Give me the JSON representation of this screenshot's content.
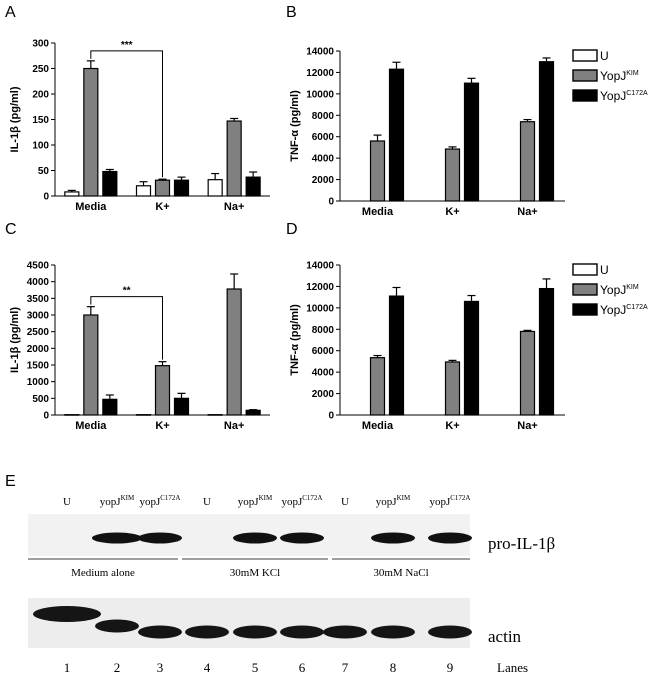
{
  "colors": {
    "U": "#ffffff",
    "YopJKIM": "#808080",
    "YopJC172A": "#000000"
  },
  "legend": {
    "entries": [
      {
        "base": "U",
        "sup": "",
        "key": "U"
      },
      {
        "base": "YopJ",
        "sup": "KIM",
        "key": "YopJKIM"
      },
      {
        "base": "YopJ",
        "sup": "C172A",
        "key": "YopJC172A"
      }
    ]
  },
  "chart_data": [
    {
      "panel": "A",
      "type": "bar",
      "ylabel": "IL-1β (pg/ml)",
      "xlabel": "",
      "categories": [
        "Media",
        "K+",
        "Na+"
      ],
      "ylim": [
        0,
        300
      ],
      "yticks": [
        0,
        50,
        100,
        150,
        200,
        250,
        300
      ],
      "series": [
        {
          "key": "U",
          "values": [
            8,
            20,
            32
          ],
          "errors": [
            3,
            8,
            12
          ]
        },
        {
          "key": "YopJKIM",
          "values": [
            250,
            31,
            147
          ],
          "errors": [
            15,
            2,
            5
          ]
        },
        {
          "key": "YopJC172A",
          "values": [
            48,
            31,
            37
          ],
          "errors": [
            4,
            6,
            10
          ]
        }
      ],
      "significance": {
        "label": "***",
        "from": 0,
        "to": 1
      }
    },
    {
      "panel": "B",
      "type": "bar",
      "ylabel": "TNF-α (pg/ml)",
      "xlabel": "",
      "categories": [
        "Media",
        "K+",
        "Na+"
      ],
      "ylim": [
        0,
        14000
      ],
      "yticks": [
        0,
        2000,
        4000,
        6000,
        8000,
        10000,
        12000,
        14000
      ],
      "series": [
        {
          "key": "U",
          "values": [
            0,
            0,
            0
          ],
          "errors": [
            0,
            0,
            0
          ]
        },
        {
          "key": "YopJKIM",
          "values": [
            5600,
            4850,
            7400
          ],
          "errors": [
            550,
            200,
            200
          ]
        },
        {
          "key": "YopJC172A",
          "values": [
            12300,
            11000,
            13000
          ],
          "errors": [
            650,
            450,
            350
          ]
        }
      ]
    },
    {
      "panel": "C",
      "type": "bar",
      "ylabel": "IL-1β (pg/ml)",
      "xlabel": "",
      "categories": [
        "Media",
        "K+",
        "Na+"
      ],
      "ylim": [
        0,
        4500
      ],
      "yticks": [
        0,
        500,
        1000,
        1500,
        2000,
        2500,
        3000,
        3500,
        4000,
        4500
      ],
      "series": [
        {
          "key": "U",
          "values": [
            10,
            10,
            10
          ],
          "errors": [
            0,
            0,
            0
          ]
        },
        {
          "key": "YopJKIM",
          "values": [
            3000,
            1480,
            3780
          ],
          "errors": [
            250,
            120,
            450
          ]
        },
        {
          "key": "YopJC172A",
          "values": [
            470,
            500,
            140
          ],
          "errors": [
            130,
            150,
            20
          ]
        }
      ],
      "significance": {
        "label": "**",
        "from": 0,
        "to": 1
      }
    },
    {
      "panel": "D",
      "type": "bar",
      "ylabel": "TNF-α (pg/ml)",
      "xlabel": "",
      "categories": [
        "Media",
        "K+",
        "Na+"
      ],
      "ylim": [
        0,
        14000
      ],
      "yticks": [
        0,
        2000,
        4000,
        6000,
        8000,
        10000,
        12000,
        14000
      ],
      "series": [
        {
          "key": "U",
          "values": [
            0,
            0,
            0
          ],
          "errors": [
            0,
            0,
            0
          ]
        },
        {
          "key": "YopJKIM",
          "values": [
            5350,
            4950,
            7800
          ],
          "errors": [
            200,
            150,
            100
          ]
        },
        {
          "key": "YopJC172A",
          "values": [
            11100,
            10600,
            11800
          ],
          "errors": [
            800,
            550,
            900
          ]
        }
      ]
    }
  ],
  "blot": {
    "panel": "E",
    "lane_headers": [
      {
        "base": "U",
        "sup": ""
      },
      {
        "base": "yopJ",
        "sup": "KIM"
      },
      {
        "base": "yopJ",
        "sup": "C172A"
      },
      {
        "base": "U",
        "sup": ""
      },
      {
        "base": "yopJ",
        "sup": "KIM"
      },
      {
        "base": "yopJ",
        "sup": "C172A"
      },
      {
        "base": "U",
        "sup": ""
      },
      {
        "base": "yopJ",
        "sup": "KIM"
      },
      {
        "base": "yopJ",
        "sup": "C172A"
      }
    ],
    "groups": [
      "Medium alone",
      "30mM KCl",
      "30mM NaCl"
    ],
    "pro_label": "pro-IL-1β",
    "actin_label": "actin",
    "lane_numbers": [
      "1",
      "2",
      "3",
      "4",
      "5",
      "6",
      "7",
      "8",
      "9"
    ],
    "lanes_label": "Lanes"
  }
}
